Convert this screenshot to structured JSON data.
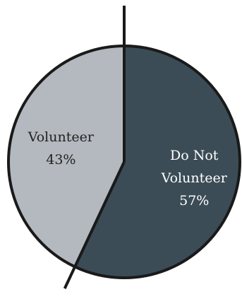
{
  "chart_data": {
    "type": "pie",
    "title": "",
    "slices": [
      {
        "label_lines": [
          "Do Not",
          "Volunteer"
        ],
        "value": 57,
        "value_label": "57%",
        "color": "#3b4c56",
        "text_color": "#ffffff"
      },
      {
        "label_lines": [
          "Volunteer"
        ],
        "value": 43,
        "value_label": "43%",
        "color": "#b4b9bf",
        "text_color": "#222222"
      }
    ],
    "start": "top",
    "direction": "clockwise",
    "outline_color": "#1a1a1a",
    "legend": "none"
  }
}
